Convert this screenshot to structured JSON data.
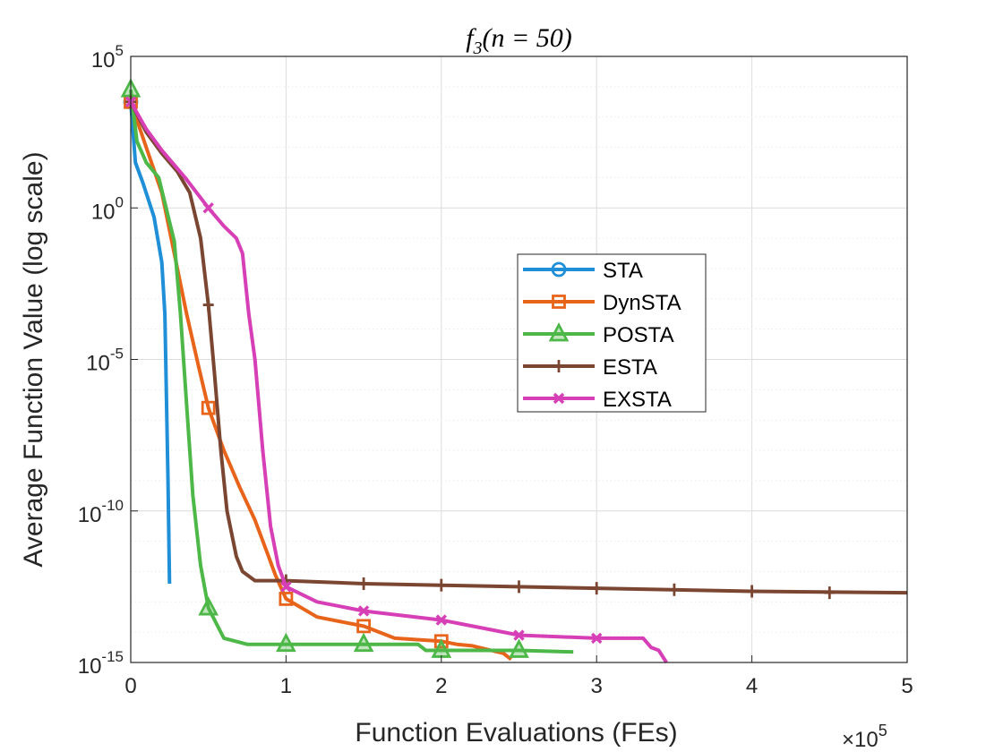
{
  "chart_data": {
    "type": "line",
    "title": "f3(n = 50)",
    "title_parts": {
      "f": "f",
      "sub": "3",
      "rest": "(n = 50)"
    },
    "xlabel": "Function Evaluations (FEs)",
    "ylabel": "Average Function Value (log scale)",
    "x_multiplier": "×10",
    "x_multiplier_exp": "5",
    "xlim": [
      0,
      500000
    ],
    "ylim_log10": [
      -15,
      5
    ],
    "x_ticks": [
      0,
      100000,
      200000,
      300000,
      400000,
      500000
    ],
    "x_tick_labels": [
      "0",
      "1",
      "2",
      "3",
      "4",
      "5"
    ],
    "y_ticks_log10": [
      5,
      0,
      -5,
      -10,
      -15
    ],
    "y_tick_labels": [
      {
        "base": "10",
        "exp": "5"
      },
      {
        "base": "10",
        "exp": "0"
      },
      {
        "base": "10",
        "exp": "-5"
      },
      {
        "base": "10",
        "exp": "-10"
      },
      {
        "base": "10",
        "exp": "-15"
      }
    ],
    "grid": true,
    "legend_position": "center-right",
    "series": [
      {
        "name": "STA",
        "color": "#1f8fd8",
        "marker": "circle",
        "points": [
          [
            0,
            3.5
          ],
          [
            3000,
            1.5
          ],
          [
            8000,
            0.8
          ],
          [
            15000,
            -0.3
          ],
          [
            20000,
            -1.8
          ],
          [
            22000,
            -3.5
          ],
          [
            24000,
            -9
          ],
          [
            25000,
            -12.4
          ]
        ],
        "marker_points": [
          [
            0,
            3.5
          ]
        ]
      },
      {
        "name": "DynSTA",
        "color": "#e8641b",
        "marker": "square",
        "points": [
          [
            0,
            3.5
          ],
          [
            10000,
            2.0
          ],
          [
            20000,
            0.5
          ],
          [
            28000,
            -1.5
          ],
          [
            36000,
            -3.5
          ],
          [
            44000,
            -5.3
          ],
          [
            50000,
            -6.6
          ],
          [
            60000,
            -8.0
          ],
          [
            70000,
            -9.2
          ],
          [
            80000,
            -10.3
          ],
          [
            88000,
            -11.4
          ],
          [
            93000,
            -12.1
          ],
          [
            100000,
            -12.9
          ],
          [
            120000,
            -13.5
          ],
          [
            150000,
            -13.8
          ],
          [
            170000,
            -14.2
          ],
          [
            200000,
            -14.3
          ],
          [
            210000,
            -14.4
          ],
          [
            220000,
            -14.45
          ],
          [
            240000,
            -14.7
          ],
          [
            245000,
            -14.9
          ]
        ],
        "marker_points": [
          [
            0,
            3.5
          ],
          [
            50000,
            -6.6
          ],
          [
            100000,
            -12.9
          ],
          [
            150000,
            -13.8
          ],
          [
            200000,
            -14.3
          ]
        ]
      },
      {
        "name": "POSTA",
        "color": "#4db848",
        "marker": "triangle",
        "points": [
          [
            0,
            3.9
          ],
          [
            4000,
            2.2
          ],
          [
            10000,
            1.5
          ],
          [
            18000,
            1.0
          ],
          [
            28000,
            -1.1
          ],
          [
            32000,
            -3.5
          ],
          [
            36000,
            -6.5
          ],
          [
            40000,
            -9.5
          ],
          [
            45000,
            -11.8
          ],
          [
            50000,
            -13.2
          ],
          [
            60000,
            -14.2
          ],
          [
            75000,
            -14.4
          ],
          [
            100000,
            -14.4
          ],
          [
            150000,
            -14.4
          ],
          [
            185000,
            -14.4
          ],
          [
            190000,
            -14.6
          ],
          [
            250000,
            -14.6
          ],
          [
            285000,
            -14.65
          ]
        ],
        "marker_points": [
          [
            0,
            3.9
          ],
          [
            50000,
            -13.2
          ],
          [
            100000,
            -14.4
          ],
          [
            150000,
            -14.4
          ],
          [
            200000,
            -14.6
          ],
          [
            250000,
            -14.6
          ]
        ]
      },
      {
        "name": "ESTA",
        "color": "#7a4631",
        "marker": "plus",
        "points": [
          [
            0,
            3.5
          ],
          [
            10000,
            2.5
          ],
          [
            20000,
            1.8
          ],
          [
            30000,
            1.2
          ],
          [
            38000,
            0.5
          ],
          [
            45000,
            -1.0
          ],
          [
            50000,
            -3.2
          ],
          [
            54000,
            -5.5
          ],
          [
            58000,
            -8.0
          ],
          [
            62000,
            -10.0
          ],
          [
            68000,
            -11.5
          ],
          [
            72000,
            -12.0
          ],
          [
            80000,
            -12.3
          ],
          [
            100000,
            -12.3
          ],
          [
            150000,
            -12.4
          ],
          [
            200000,
            -12.45
          ],
          [
            300000,
            -12.55
          ],
          [
            400000,
            -12.65
          ],
          [
            500000,
            -12.7
          ]
        ],
        "marker_points": [
          [
            0,
            3.5
          ],
          [
            50000,
            -3.2
          ],
          [
            100000,
            -12.3
          ],
          [
            150000,
            -12.4
          ],
          [
            200000,
            -12.45
          ],
          [
            250000,
            -12.5
          ],
          [
            300000,
            -12.55
          ],
          [
            350000,
            -12.6
          ],
          [
            400000,
            -12.65
          ],
          [
            450000,
            -12.7
          ]
        ]
      },
      {
        "name": "EXSTA",
        "color": "#d63fb5",
        "marker": "x",
        "points": [
          [
            0,
            3.5
          ],
          [
            10000,
            2.6
          ],
          [
            20000,
            1.9
          ],
          [
            35000,
            1.0
          ],
          [
            50000,
            0.0
          ],
          [
            60000,
            -0.6
          ],
          [
            68000,
            -1.0
          ],
          [
            72000,
            -1.5
          ],
          [
            76000,
            -3.5
          ],
          [
            80000,
            -5.0
          ],
          [
            85000,
            -8.0
          ],
          [
            90000,
            -10.5
          ],
          [
            95000,
            -11.8
          ],
          [
            100000,
            -12.5
          ],
          [
            120000,
            -13.0
          ],
          [
            150000,
            -13.3
          ],
          [
            200000,
            -13.6
          ],
          [
            250000,
            -14.1
          ],
          [
            300000,
            -14.2
          ],
          [
            330000,
            -14.2
          ],
          [
            335000,
            -14.5
          ],
          [
            340000,
            -14.6
          ],
          [
            345000,
            -15.0
          ]
        ],
        "marker_points": [
          [
            0,
            3.5
          ],
          [
            50000,
            0.0
          ],
          [
            100000,
            -12.5
          ],
          [
            150000,
            -13.3
          ],
          [
            200000,
            -13.6
          ],
          [
            250000,
            -14.1
          ],
          [
            300000,
            -14.2
          ]
        ]
      }
    ]
  }
}
